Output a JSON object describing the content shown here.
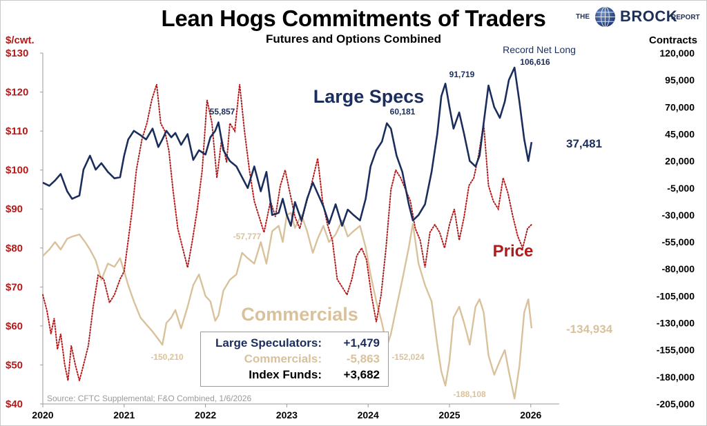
{
  "title": "Lean Hogs Commitments of Traders",
  "subtitle": "Futures and Options Combined",
  "brand": {
    "the": "THE",
    "name": "BROCK",
    "report": "REPORT"
  },
  "axis_left_label": "$/cwt.",
  "axis_right_label": "Contracts",
  "colors": {
    "specs": "#1a2d5c",
    "commercials": "#d9c29b",
    "price": "#b21a1a",
    "text": "#000000"
  },
  "legend": {
    "rows": [
      {
        "label": "Large Speculators:",
        "value": "+1,479"
      },
      {
        "label": "Commercials:",
        "value": "-5,863"
      },
      {
        "label": "Index Funds:",
        "value": "+3,682"
      }
    ]
  },
  "source": "Source: CFTC Supplemental; F&O Combined, 1/6/2026",
  "chart_data": {
    "type": "line",
    "title": "Lean Hogs Commitments of Traders",
    "subtitle": "Futures and Options Combined",
    "x": {
      "range": [
        2020,
        2026.35
      ],
      "ticks": [
        2020,
        2021,
        2022,
        2023,
        2024,
        2025,
        2026
      ],
      "tick_labels": [
        "2020",
        "2021",
        "2022",
        "2023",
        "2024",
        "2025",
        "2026"
      ]
    },
    "y_left": {
      "label": "$/cwt.",
      "range": [
        40,
        130
      ],
      "ticks": [
        40,
        50,
        60,
        70,
        80,
        90,
        100,
        110,
        120,
        130
      ],
      "tick_labels": [
        "$40",
        "$50",
        "$60",
        "$70",
        "$80",
        "$90",
        "$100",
        "$110",
        "$120",
        "$130"
      ]
    },
    "y_right": {
      "label": "Contracts",
      "range": [
        -205000,
        120000
      ],
      "ticks": [
        120000,
        95000,
        70000,
        45000,
        20000,
        -5000,
        -30000,
        -55000,
        -80000,
        -105000,
        -130000,
        -155000,
        -180000,
        -205000
      ],
      "tick_labels": [
        "120,000",
        "95,000",
        "70,000",
        "45,000",
        "20,000",
        "-5,000",
        "-30,000",
        "-55,000",
        "-80,000",
        "-105,000",
        "-130,000",
        "-155,000",
        "-180,000",
        "-205,000"
      ]
    },
    "series": [
      {
        "name": "Large Specs",
        "axis": "right",
        "color": "#1a2d5c",
        "style": "solid",
        "x": [
          2020.0,
          2020.08,
          2020.15,
          2020.22,
          2020.3,
          2020.36,
          2020.45,
          2020.5,
          2020.58,
          2020.65,
          2020.72,
          2020.8,
          2020.88,
          2020.95,
          2021.0,
          2021.05,
          2021.12,
          2021.2,
          2021.27,
          2021.35,
          2021.42,
          2021.47,
          2021.52,
          2021.58,
          2021.63,
          2021.7,
          2021.78,
          2021.85,
          2021.92,
          2022.0,
          2022.06,
          2022.12,
          2022.16,
          2022.22,
          2022.3,
          2022.38,
          2022.45,
          2022.52,
          2022.6,
          2022.68,
          2022.75,
          2022.82,
          2022.9,
          2022.95,
          2023.0,
          2023.05,
          2023.1,
          2023.18,
          2023.25,
          2023.32,
          2023.38,
          2023.45,
          2023.52,
          2023.6,
          2023.68,
          2023.75,
          2023.82,
          2023.9,
          2023.97,
          2024.03,
          2024.1,
          2024.17,
          2024.23,
          2024.28,
          2024.35,
          2024.42,
          2024.5,
          2024.55,
          2024.62,
          2024.7,
          2024.78,
          2024.85,
          2024.9,
          2024.95,
          2025.0,
          2025.05,
          2025.12,
          2025.18,
          2025.25,
          2025.32,
          2025.37,
          2025.42,
          2025.48,
          2025.55,
          2025.62,
          2025.68,
          2025.73,
          2025.8,
          2025.86,
          2025.92,
          2025.97,
          2026.01
        ],
        "values": [
          0,
          -3000,
          2000,
          8000,
          -8000,
          -15000,
          -12000,
          12000,
          25000,
          12000,
          18000,
          10000,
          4000,
          5000,
          25000,
          40000,
          48000,
          44000,
          40000,
          50000,
          33000,
          40000,
          48000,
          42000,
          46000,
          35000,
          45000,
          21000,
          30000,
          26000,
          42000,
          48000,
          55857,
          30000,
          20000,
          15000,
          5000,
          -5000,
          15000,
          -8000,
          10000,
          -30000,
          -28000,
          -15000,
          -30000,
          -40000,
          -18000,
          -35000,
          -15000,
          0,
          -10000,
          -22000,
          -38000,
          -20000,
          -40000,
          -25000,
          -30000,
          -35000,
          -15000,
          15000,
          30000,
          38000,
          55000,
          50000,
          25000,
          10000,
          -20000,
          -35000,
          -30000,
          -20000,
          10000,
          45000,
          80000,
          91719,
          70000,
          50000,
          65000,
          45000,
          20000,
          15000,
          25000,
          55000,
          90000,
          70000,
          60000,
          75000,
          95000,
          106616,
          75000,
          40000,
          20000,
          37481
        ]
      },
      {
        "name": "Commercials",
        "axis": "right",
        "color": "#d9c29b",
        "style": "solid",
        "x": [
          2020.0,
          2020.08,
          2020.15,
          2020.22,
          2020.3,
          2020.36,
          2020.45,
          2020.52,
          2020.58,
          2020.65,
          2020.72,
          2020.8,
          2020.88,
          2020.95,
          2021.0,
          2021.05,
          2021.12,
          2021.2,
          2021.28,
          2021.35,
          2021.42,
          2021.47,
          2021.52,
          2021.58,
          2021.63,
          2021.7,
          2021.78,
          2021.85,
          2021.92,
          2022.0,
          2022.06,
          2022.12,
          2022.16,
          2022.22,
          2022.3,
          2022.38,
          2022.45,
          2022.52,
          2022.6,
          2022.68,
          2022.75,
          2022.82,
          2022.9,
          2022.95,
          2023.0,
          2023.05,
          2023.1,
          2023.18,
          2023.25,
          2023.32,
          2023.38,
          2023.45,
          2023.52,
          2023.6,
          2023.68,
          2023.75,
          2023.82,
          2023.9,
          2023.97,
          2024.03,
          2024.1,
          2024.17,
          2024.23,
          2024.28,
          2024.35,
          2024.42,
          2024.5,
          2024.55,
          2024.62,
          2024.7,
          2024.78,
          2024.85,
          2024.9,
          2024.95,
          2025.0,
          2025.05,
          2025.12,
          2025.18,
          2025.25,
          2025.32,
          2025.37,
          2025.42,
          2025.48,
          2025.55,
          2025.62,
          2025.68,
          2025.73,
          2025.8,
          2025.86,
          2025.92,
          2025.97,
          2026.01
        ],
        "values": [
          -68000,
          -62000,
          -55000,
          -62000,
          -52000,
          -50000,
          -48000,
          -55000,
          -62000,
          -72000,
          -90000,
          -75000,
          -78000,
          -70000,
          -82000,
          -95000,
          -110000,
          -125000,
          -132000,
          -138000,
          -145000,
          -150210,
          -130000,
          -125000,
          -118000,
          -135000,
          -115000,
          -95000,
          -85000,
          -105000,
          -110000,
          -128000,
          -123000,
          -100000,
          -90000,
          -85000,
          -65000,
          -70000,
          -75000,
          -55000,
          -75000,
          -45000,
          -40000,
          -55000,
          -30000,
          -28000,
          -42000,
          -30000,
          -45000,
          -65000,
          -52000,
          -40000,
          -55000,
          -48000,
          -35000,
          -50000,
          -45000,
          -40000,
          -60000,
          -85000,
          -110000,
          -130000,
          -152024,
          -140000,
          -115000,
          -90000,
          -60000,
          -38000,
          -75000,
          -95000,
          -110000,
          -150000,
          -175000,
          -188108,
          -165000,
          -125000,
          -115000,
          -130000,
          -150000,
          -115000,
          -108000,
          -120000,
          -160000,
          -178000,
          -165000,
          -155000,
          -175000,
          -200000,
          -170000,
          -120000,
          -108000,
          -134934
        ]
      },
      {
        "name": "Price",
        "axis": "left",
        "color": "#b21a1a",
        "style": "dotted",
        "x": [
          2020.0,
          2020.05,
          2020.1,
          2020.14,
          2020.18,
          2020.22,
          2020.27,
          2020.31,
          2020.35,
          2020.4,
          2020.45,
          2020.5,
          2020.56,
          2020.62,
          2020.68,
          2020.75,
          2020.82,
          2020.88,
          2020.95,
          2021.0,
          2021.05,
          2021.1,
          2021.15,
          2021.22,
          2021.28,
          2021.34,
          2021.4,
          2021.45,
          2021.5,
          2021.55,
          2021.6,
          2021.66,
          2021.72,
          2021.78,
          2021.84,
          2021.9,
          2021.96,
          2022.02,
          2022.08,
          2022.14,
          2022.2,
          2022.26,
          2022.3,
          2022.36,
          2022.42,
          2022.48,
          2022.54,
          2022.6,
          2022.66,
          2022.72,
          2022.8,
          2022.86,
          2022.92,
          2022.98,
          2023.04,
          2023.1,
          2023.16,
          2023.22,
          2023.3,
          2023.38,
          2023.44,
          2023.5,
          2023.56,
          2023.62,
          2023.68,
          2023.74,
          2023.8,
          2023.86,
          2023.92,
          2023.98,
          2024.04,
          2024.1,
          2024.16,
          2024.22,
          2024.28,
          2024.34,
          2024.4,
          2024.46,
          2024.52,
          2024.58,
          2024.64,
          2024.7,
          2024.76,
          2024.82,
          2024.88,
          2024.94,
          2025.0,
          2025.06,
          2025.12,
          2025.18,
          2025.24,
          2025.3,
          2025.36,
          2025.42,
          2025.48,
          2025.54,
          2025.6,
          2025.66,
          2025.72,
          2025.78,
          2025.84,
          2025.9,
          2025.96,
          2026.01
        ],
        "values": [
          68,
          64,
          58,
          62,
          54,
          58,
          50,
          46,
          55,
          50,
          46,
          50,
          55,
          65,
          73,
          72,
          66,
          68,
          72,
          74,
          82,
          90,
          100,
          108,
          112,
          118,
          122,
          112,
          110,
          105,
          95,
          85,
          80,
          75,
          82,
          90,
          100,
          118,
          112,
          98,
          108,
          102,
          112,
          110,
          122,
          110,
          100,
          92,
          88,
          84,
          92,
          88,
          96,
          100,
          94,
          88,
          85,
          90,
          96,
          103,
          92,
          86,
          82,
          72,
          70,
          68,
          72,
          78,
          80,
          77,
          68,
          61,
          68,
          80,
          95,
          100,
          98,
          95,
          92,
          85,
          82,
          75,
          84,
          86,
          84,
          80,
          86,
          90,
          82,
          88,
          96,
          98,
          104,
          112,
          96,
          92,
          90,
          98,
          94,
          88,
          83,
          80,
          85,
          86
        ]
      }
    ],
    "annotations": [
      {
        "text": "55,857",
        "series": "Large Specs"
      },
      {
        "text": "60,181",
        "series": "Large Specs"
      },
      {
        "text": "91,719",
        "series": "Large Specs"
      },
      {
        "text": "106,616",
        "series": "Large Specs"
      },
      {
        "text": "Record Net Long",
        "series": "Large Specs"
      },
      {
        "text": "37,481",
        "series": "Large Specs"
      },
      {
        "text": "-57,777",
        "series": "Commercials"
      },
      {
        "text": "-150,210",
        "series": "Commercials"
      },
      {
        "text": "-152,024",
        "series": "Commercials"
      },
      {
        "text": "-188,108",
        "series": "Commercials"
      },
      {
        "text": "-134,934",
        "series": "Commercials"
      }
    ],
    "series_labels": [
      {
        "text": "Large Specs",
        "series": "Large Specs"
      },
      {
        "text": "Commercials",
        "series": "Commercials"
      },
      {
        "text": "Price",
        "series": "Price"
      }
    ],
    "grid": false
  }
}
